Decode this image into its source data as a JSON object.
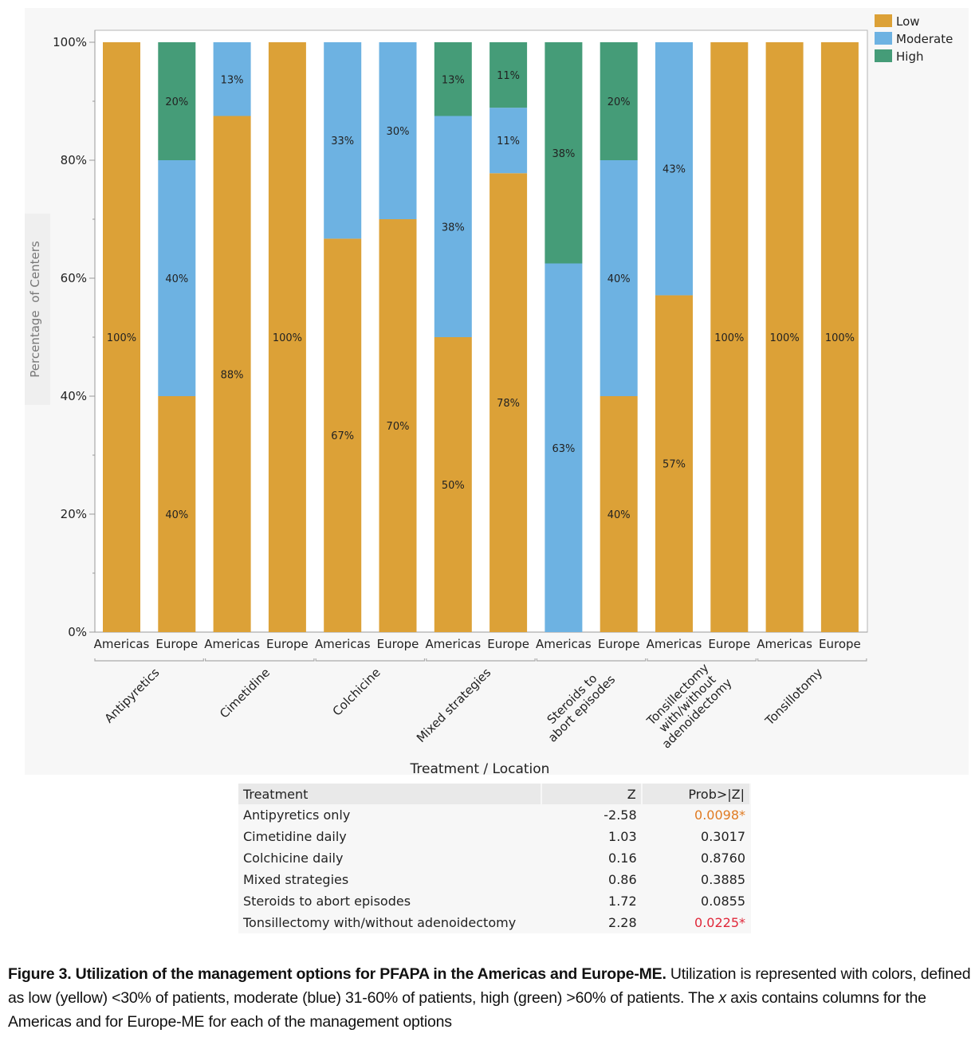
{
  "chart_data": {
    "type": "bar",
    "stacked": true,
    "title": "",
    "xlabel": "Treatment / Location",
    "ylabel": "Percentage  of Centers",
    "ylim": [
      0,
      100
    ],
    "y_ticks": [
      "0%",
      "20%",
      "40%",
      "60%",
      "80%",
      "100%"
    ],
    "y_tick_values": [
      0,
      20,
      40,
      60,
      80,
      100
    ],
    "legend": {
      "placement": "top-right",
      "entries": [
        {
          "name": "Low",
          "color": "#dca137"
        },
        {
          "name": "Moderate",
          "color": "#6db2e2"
        },
        {
          "name": "High",
          "color": "#459c78"
        }
      ]
    },
    "groups": [
      {
        "label": [
          "Antipyretics"
        ]
      },
      {
        "label": [
          "Cimetidine"
        ]
      },
      {
        "label": [
          "Colchicine"
        ]
      },
      {
        "label": [
          "Mixed strategies"
        ]
      },
      {
        "label": [
          "Steroids to",
          "abort episodes"
        ]
      },
      {
        "label": [
          "Tonsillectomy",
          "with/without",
          "adenoidectomy"
        ]
      },
      {
        "label": [
          "Tonsillotomy"
        ]
      }
    ],
    "categories": [
      "Americas",
      "Europe",
      "Americas",
      "Europe",
      "Americas",
      "Europe",
      "Americas",
      "Europe",
      "Americas",
      "Europe",
      "Americas",
      "Europe",
      "Americas",
      "Europe"
    ],
    "series": [
      {
        "name": "Low",
        "values": [
          100,
          40,
          87.5,
          100,
          66.7,
          70,
          50,
          77.8,
          0,
          40,
          57.1,
          100,
          100,
          100
        ],
        "labels": [
          "100%",
          "40%",
          "88%",
          "100%",
          "67%",
          "70%",
          "50%",
          "78%",
          "",
          "40%",
          "57%",
          "100%",
          "100%",
          "100%"
        ]
      },
      {
        "name": "Moderate",
        "values": [
          0,
          40,
          12.5,
          0,
          33.3,
          30,
          37.5,
          11.1,
          62.5,
          40,
          42.9,
          0,
          0,
          0
        ],
        "labels": [
          "",
          "40%",
          "13%",
          "",
          "33%",
          "30%",
          "38%",
          "11%",
          "63%",
          "40%",
          "43%",
          "",
          "",
          ""
        ]
      },
      {
        "name": "High",
        "values": [
          0,
          20,
          0,
          0,
          0,
          0,
          12.5,
          11.1,
          37.5,
          20,
          0,
          0,
          0,
          0
        ],
        "labels": [
          "",
          "20%",
          "",
          "",
          "",
          "",
          "13%",
          "11%",
          "38%",
          "20%",
          "",
          "",
          "",
          ""
        ]
      }
    ]
  },
  "table": {
    "headers": [
      "Treatment",
      "Z",
      "Prob>|Z|"
    ],
    "rows": [
      {
        "treatment": "Antipyretics only",
        "z": "-2.58",
        "p": "0.0098*",
        "p_color": "#e07b22"
      },
      {
        "treatment": "Cimetidine daily",
        "z": "1.03",
        "p": "0.3017",
        "p_color": "#222222"
      },
      {
        "treatment": "Colchicine daily",
        "z": "0.16",
        "p": "0.8760",
        "p_color": "#222222"
      },
      {
        "treatment": "Mixed strategies",
        "z": "0.86",
        "p": "0.3885",
        "p_color": "#222222"
      },
      {
        "treatment": "Steroids to abort episodes",
        "z": "1.72",
        "p": "0.0855",
        "p_color": "#222222"
      },
      {
        "treatment": "Tonsillectomy with/without adenoidectomy",
        "z": "2.28",
        "p": "0.0225*",
        "p_color": "#e0283a"
      }
    ]
  },
  "caption": {
    "bold": "Figure 3. Utilization of the management options for PFAPA in the Americas and Europe-ME.",
    "text1": " Utilization is represented with colors, defined as low (yellow) <30% of patients, moderate (blue) 31-60% of patients, high (green) >60% of patients. The ",
    "italic": "x",
    "text2": " axis contains columns for the Americas and for Europe-ME for each of the management options"
  }
}
